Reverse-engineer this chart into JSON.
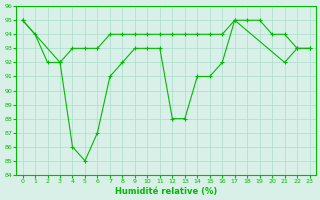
{
  "line1_x": [
    0,
    1,
    2,
    3,
    4,
    5,
    6,
    7,
    8,
    9,
    10,
    11,
    12,
    13,
    14,
    15,
    16,
    17,
    18,
    19,
    20,
    21,
    22,
    23
  ],
  "line1_y": [
    95,
    94,
    92,
    92,
    93,
    93,
    93,
    94,
    94,
    94,
    94,
    94,
    94,
    94,
    94,
    94,
    94,
    95,
    95,
    95,
    94,
    94,
    93,
    93
  ],
  "line2_x": [
    0,
    3,
    4,
    5,
    6,
    7,
    8,
    9,
    10,
    11,
    12,
    13,
    14,
    15,
    16,
    17,
    21,
    22,
    23
  ],
  "line2_y": [
    95,
    92,
    86,
    85,
    87,
    91,
    92,
    93,
    93,
    93,
    88,
    88,
    91,
    91,
    92,
    95,
    92,
    93,
    93
  ],
  "line_color": "#00bb00",
  "bg_color": "#d8f0e8",
  "grid_color": "#aaddcc",
  "xlabel": "Humidité relative (%)",
  "ylim": [
    84,
    96
  ],
  "xlim": [
    -0.5,
    23.5
  ],
  "yticks": [
    84,
    85,
    86,
    87,
    88,
    89,
    90,
    91,
    92,
    93,
    94,
    95,
    96
  ],
  "xticks": [
    0,
    1,
    2,
    3,
    4,
    5,
    6,
    7,
    8,
    9,
    10,
    11,
    12,
    13,
    14,
    15,
    16,
    17,
    18,
    19,
    20,
    21,
    22,
    23
  ]
}
